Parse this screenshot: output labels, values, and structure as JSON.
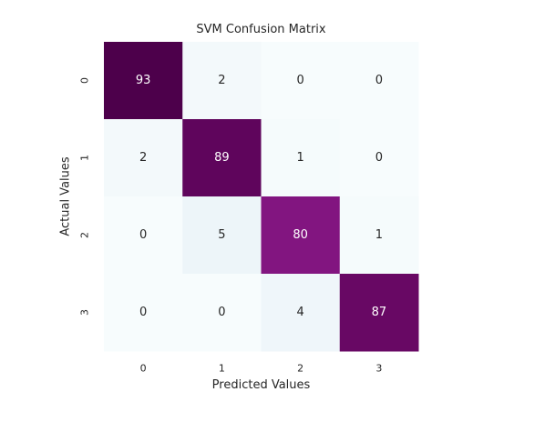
{
  "chart_data": {
    "type": "heatmap",
    "title": "SVM Confusion Matrix",
    "xlabel": "Predicted Values",
    "ylabel": "Actual Values",
    "x_categories": [
      "0",
      "1",
      "2",
      "3"
    ],
    "y_categories": [
      "0",
      "1",
      "2",
      "3"
    ],
    "matrix": [
      [
        93,
        2,
        0,
        0
      ],
      [
        2,
        89,
        1,
        0
      ],
      [
        0,
        5,
        80,
        1
      ],
      [
        0,
        0,
        4,
        87
      ]
    ],
    "colormap": "BuPu",
    "value_range": [
      0,
      93
    ],
    "colorbar": false,
    "grid": false,
    "annotations": true,
    "colors": {
      "low": "#f7fcfd",
      "high": "#4d004b",
      "text_dark": "#262626",
      "text_light": "#ffffff"
    }
  }
}
